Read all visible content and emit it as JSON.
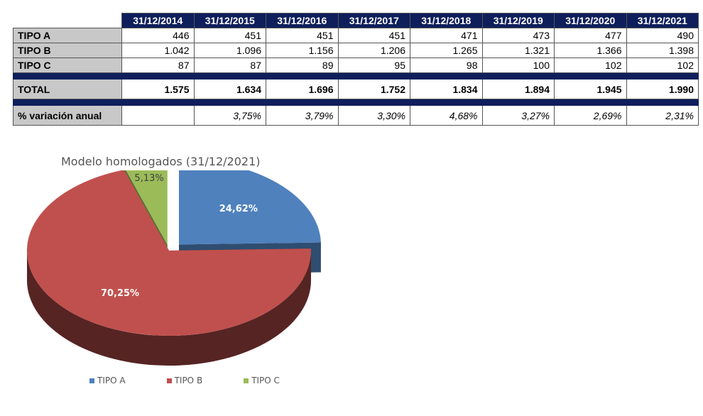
{
  "table": {
    "headers": [
      "31/12/2014",
      "31/12/2015",
      "31/12/2016",
      "31/12/2017",
      "31/12/2018",
      "31/12/2019",
      "31/12/2020",
      "31/12/2021"
    ],
    "rows": [
      {
        "label": "TIPO A",
        "values": [
          "446",
          "451",
          "451",
          "451",
          "471",
          "473",
          "477",
          "490"
        ]
      },
      {
        "label": "TIPO B",
        "values": [
          "1.042",
          "1.096",
          "1.156",
          "1.206",
          "1.265",
          "1.321",
          "1.366",
          "1.398"
        ]
      },
      {
        "label": "TIPO C",
        "values": [
          "87",
          "87",
          "89",
          "95",
          "98",
          "100",
          "102",
          "102"
        ]
      }
    ],
    "total": {
      "label": "TOTAL",
      "values": [
        "1.575",
        "1.634",
        "1.696",
        "1.752",
        "1.834",
        "1.894",
        "1.945",
        "1.990"
      ]
    },
    "variation": {
      "label": "% variación anual",
      "values": [
        "",
        "3,75%",
        "3,79%",
        "3,30%",
        "4,68%",
        "3,27%",
        "2,69%",
        "2,31%"
      ]
    }
  },
  "chart_data": {
    "type": "pie",
    "title": "Modelo homologados (31/12/2021)",
    "categories": [
      "TIPO A",
      "TIPO B",
      "TIPO C"
    ],
    "values": [
      24.62,
      70.25,
      5.13
    ],
    "labels": [
      "24,62%",
      "70,25%",
      "5,13%"
    ],
    "colors": [
      "#4f81bd",
      "#c0504d",
      "#9bbb59"
    ],
    "exploded": true,
    "style": "3d",
    "legend": "bottom"
  }
}
